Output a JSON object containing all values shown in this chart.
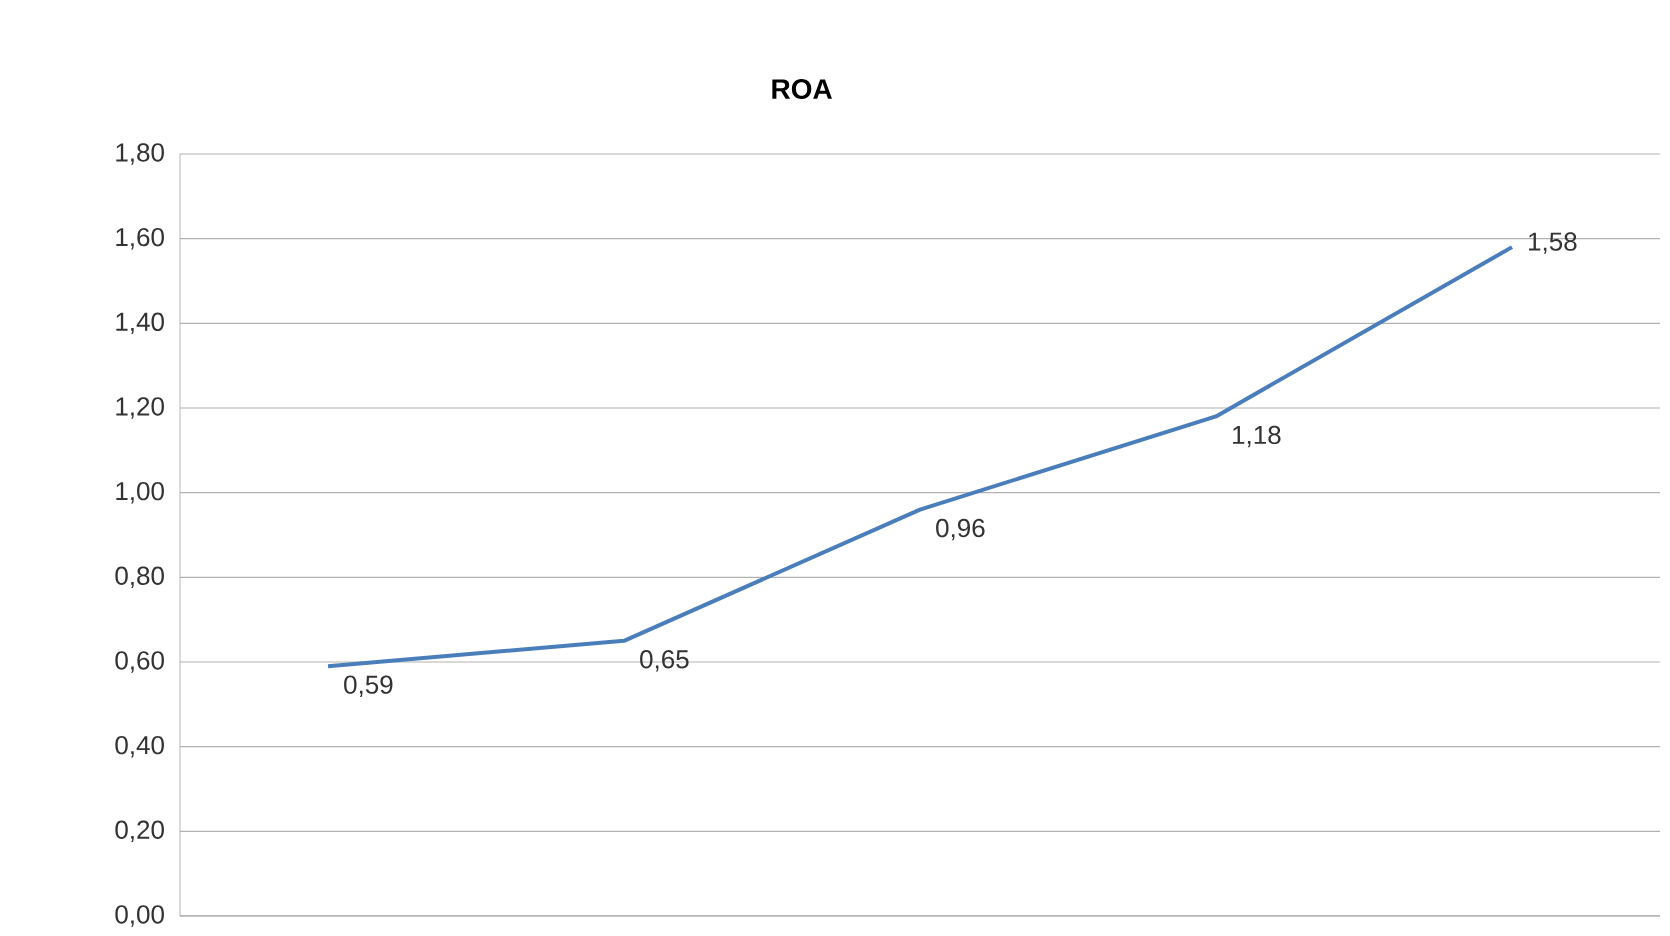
{
  "chart_data": {
    "type": "line",
    "title": "ROA",
    "categories": [
      null,
      null,
      null,
      null,
      null
    ],
    "series": [
      {
        "color": "#4a7ebb",
        "values": [
          0.59,
          0.65,
          0.96,
          1.18,
          1.58
        ],
        "value_labels": [
          "0,59",
          "0,65",
          "0,96",
          "1,18",
          "1,58"
        ]
      }
    ],
    "ylim": [
      0,
      1.8
    ],
    "yticks": [
      {
        "value": 0,
        "label": "0,00"
      },
      {
        "value": 0.2,
        "label": "0,20"
      },
      {
        "value": 0.4,
        "label": "0,40"
      },
      {
        "value": 0.6,
        "label": "0,60"
      },
      {
        "value": 0.8,
        "label": "0,80"
      },
      {
        "value": 1.0,
        "label": "1,00"
      },
      {
        "value": 1.2,
        "label": "1,20"
      },
      {
        "value": 1.4,
        "label": "1,40"
      },
      {
        "value": 1.6,
        "label": "1,60"
      },
      {
        "value": 1.8,
        "label": "1,80"
      }
    ],
    "grid": "y"
  }
}
